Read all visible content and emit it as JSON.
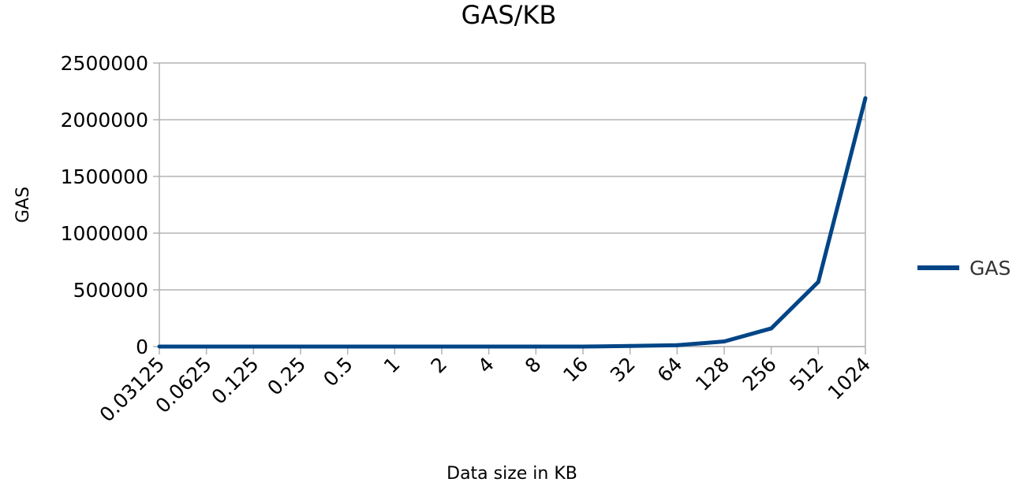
{
  "chart_data": {
    "type": "line",
    "title": "GAS/KB",
    "xlabel": "Data size in KB",
    "ylabel": "GAS",
    "categories": [
      "0.03125",
      "0.0625",
      "0.125",
      "0.25",
      "0.5",
      "1",
      "2",
      "4",
      "8",
      "16",
      "32",
      "64",
      "128",
      "256",
      "512",
      "1024"
    ],
    "series": [
      {
        "name": "GAS",
        "color": "#004586",
        "values": [
          0,
          0,
          0,
          0,
          0,
          0,
          0,
          0,
          0,
          0,
          5000,
          12000,
          45000,
          160000,
          570000,
          2190000
        ]
      }
    ],
    "ylim": [
      0,
      2500000
    ],
    "yticks": [
      "0",
      "500000",
      "1000000",
      "1500000",
      "2000000",
      "2500000"
    ],
    "grid": true,
    "legend_position": "right"
  }
}
